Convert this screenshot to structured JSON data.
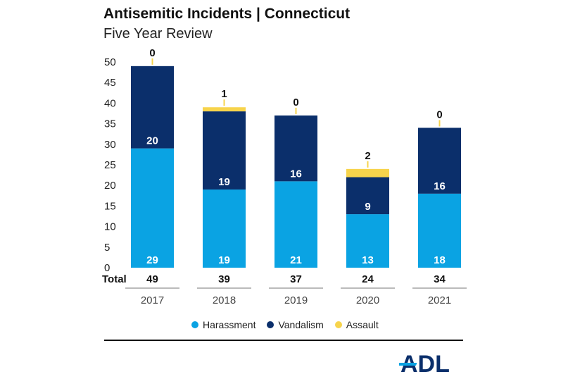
{
  "title": "Antisemitic Incidents | Connecticut",
  "subtitle": "Five Year Review",
  "chart_data": {
    "type": "bar",
    "stacked": true,
    "categories": [
      "2017",
      "2018",
      "2019",
      "2020",
      "2021"
    ],
    "series": [
      {
        "name": "Harassment",
        "values": [
          29,
          19,
          21,
          13,
          18
        ],
        "color": "#0aa3e3"
      },
      {
        "name": "Vandalism",
        "values": [
          20,
          19,
          16,
          9,
          16
        ],
        "color": "#0b2f6b"
      },
      {
        "name": "Assault",
        "values": [
          0,
          1,
          0,
          2,
          0
        ],
        "color": "#f7d44c"
      }
    ],
    "total_label": "Total",
    "totals": [
      49,
      39,
      37,
      24,
      34
    ],
    "yticks": [
      0,
      5,
      10,
      15,
      20,
      25,
      30,
      35,
      40,
      45,
      50
    ],
    "ylim": [
      0,
      50
    ],
    "grid": false,
    "legend_position": "bottom"
  },
  "logo": {
    "text": "ADL",
    "color": "#0b2f6b",
    "accent": "#0aa3e3"
  }
}
